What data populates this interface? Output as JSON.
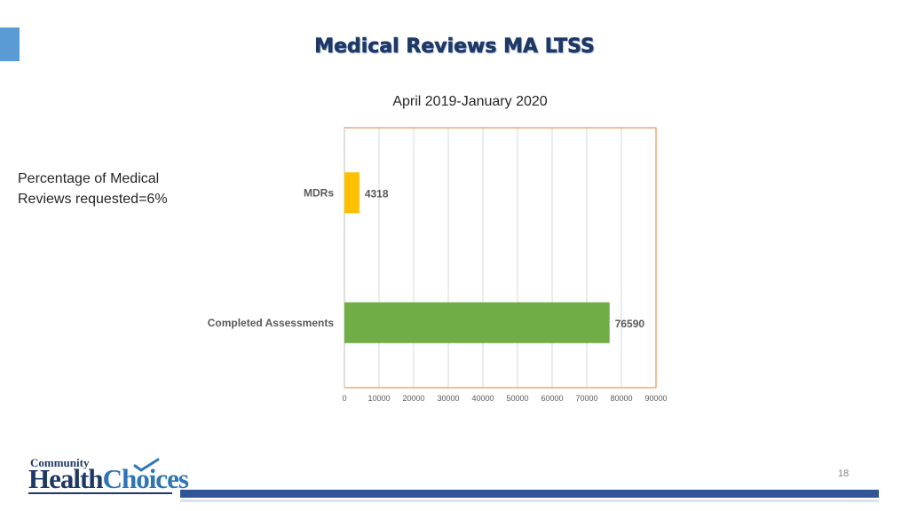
{
  "slide": {
    "title": "Medical Reviews MA LTSS",
    "subtitle": "April 2019-January 2020",
    "side_note": "Percentage of Medical Reviews requested=6%",
    "page_number": "18"
  },
  "logo": {
    "line1": "Community",
    "line2a": "Health",
    "line2b": "Choices"
  },
  "chart_data": {
    "type": "bar",
    "orientation": "horizontal",
    "categories": [
      "MDRs",
      "Completed Assessments"
    ],
    "values": [
      4318,
      76590
    ],
    "colors": [
      "#ffc000",
      "#70ad47"
    ],
    "xlim": [
      0,
      90000
    ],
    "xticks": [
      0,
      10000,
      20000,
      30000,
      40000,
      50000,
      60000,
      70000,
      80000,
      90000
    ],
    "data_labels": [
      "4318",
      "76590"
    ],
    "grid": true,
    "frame_color": "#ed7d31"
  }
}
